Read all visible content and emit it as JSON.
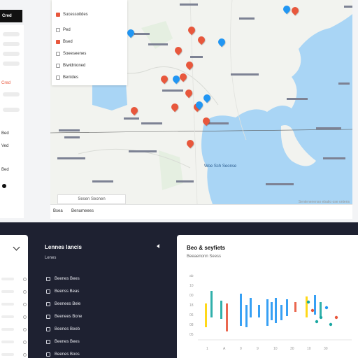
{
  "brand_tab": "Cred",
  "left_rail": {
    "red_label": "Cred",
    "labels": [
      "Bed",
      "Ved",
      "Bed"
    ]
  },
  "layers": [
    {
      "label": "Sucessoitdes",
      "checked": true
    },
    {
      "label": "Ped",
      "checked": false
    },
    {
      "label": "Bsed",
      "checked": true
    },
    {
      "label": "Soeeseenes",
      "checked": false
    },
    {
      "label": "Biwidnioned",
      "checked": false
    },
    {
      "label": "Bentdes",
      "checked": false
    }
  ],
  "map": {
    "water_label": "Woe Sch Seonse",
    "bottom_tabs": [
      "Bsea",
      "Benumeees"
    ],
    "legend": "Sesen Seonen",
    "attribution": "Sentenenenso ebatio ose ontens"
  },
  "list_panel": {
    "title": "Lennes lancis",
    "subtitle": "Lenes",
    "items": [
      "Beenes Bees",
      "Beenss Beas",
      "Beenees Bele",
      "Beenees Bone",
      "Beenes Beeb",
      "Beenes Bees",
      "Beenes Boos"
    ]
  },
  "chart": {
    "title": "Beo & seyfiets",
    "subtitle": "Beeaenonn Seess",
    "y_ticks": [
      "ab",
      "10",
      "00",
      "18",
      "06",
      "08",
      "05"
    ],
    "x_ticks": [
      "1",
      "A",
      "0",
      "9",
      "10",
      "30",
      "10",
      "30"
    ]
  },
  "colors": {
    "dark_bg": "#1e2131",
    "pin_red": "#e8573c",
    "pin_blue": "#2196f3",
    "water": "#a9d5f5",
    "bar_yellow": "#ffd400",
    "bar_teal": "#1aa7a2",
    "bar_red": "#e8573c"
  },
  "pins": {
    "icon": "map-pin-icon",
    "red": [
      "Pin-1",
      "Pin-2",
      "Pin-3",
      "Pin-4",
      "Pin-5",
      "Pin-6",
      "Pin-7",
      "Pin-8",
      "Pin-9",
      "Pin-10",
      "Pin-11",
      "Pin-12",
      "Pin-13"
    ],
    "blue": [
      "Pin-A",
      "Pin-B",
      "Pin-C",
      "Pin-D",
      "Pin-E",
      "Pin-F",
      "Pin-G"
    ]
  }
}
